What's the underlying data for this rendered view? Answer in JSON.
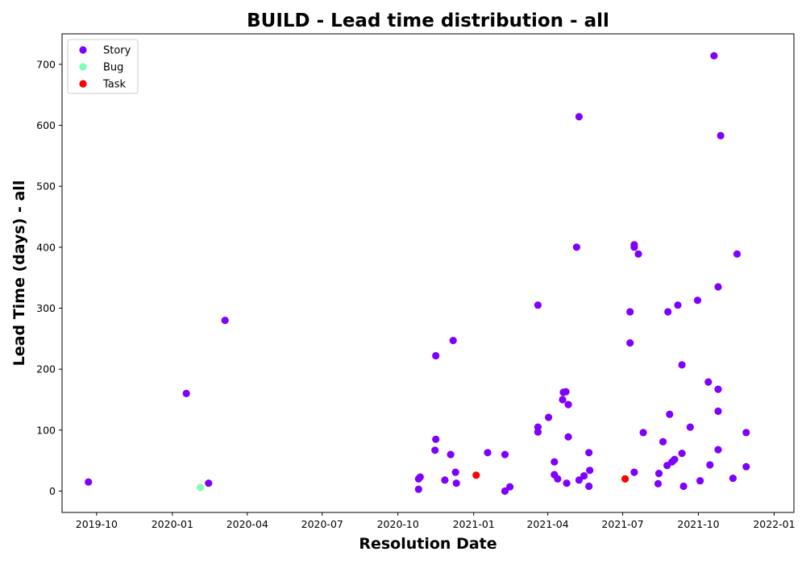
{
  "chart_data": {
    "type": "scatter",
    "title": "BUILD - Lead time distribution - all",
    "xlabel": "Resolution Date",
    "ylabel": "Lead Time (days) - all",
    "x_axis_type": "date",
    "xlim": [
      "2019-08-20",
      "2022-01-25"
    ],
    "ylim": [
      -35,
      750
    ],
    "x_ticks": [
      "2019-10-01",
      "2020-01-01",
      "2020-04-01",
      "2020-07-01",
      "2020-10-01",
      "2021-01-01",
      "2021-04-01",
      "2021-07-01",
      "2021-10-01",
      "2022-01-01"
    ],
    "x_tick_labels": [
      "2019-10",
      "2020-01",
      "2020-04",
      "2020-07",
      "2020-10",
      "2021-01",
      "2021-04",
      "2021-07",
      "2021-10",
      "2022-01"
    ],
    "y_ticks": [
      0,
      100,
      200,
      300,
      400,
      500,
      600,
      700
    ],
    "grid": false,
    "legend_position": "top-left",
    "series": [
      {
        "name": "Story",
        "color": "#8000ff",
        "points": [
          [
            "2019-09-21",
            15
          ],
          [
            "2020-01-18",
            160
          ],
          [
            "2020-02-14",
            13
          ],
          [
            "2020-03-05",
            280
          ],
          [
            "2020-10-26",
            3
          ],
          [
            "2020-10-26",
            20
          ],
          [
            "2020-10-28",
            23
          ],
          [
            "2020-11-15",
            67
          ],
          [
            "2020-11-16",
            222
          ],
          [
            "2020-11-16",
            85
          ],
          [
            "2020-11-27",
            18
          ],
          [
            "2020-12-04",
            60
          ],
          [
            "2020-12-07",
            247
          ],
          [
            "2020-12-10",
            31
          ],
          [
            "2020-12-11",
            13
          ],
          [
            "2021-01-18",
            63
          ],
          [
            "2021-02-08",
            60
          ],
          [
            "2021-02-08",
            0
          ],
          [
            "2021-02-14",
            7
          ],
          [
            "2021-03-20",
            305
          ],
          [
            "2021-03-20",
            105
          ],
          [
            "2021-03-20",
            97
          ],
          [
            "2021-04-02",
            121
          ],
          [
            "2021-04-09",
            48
          ],
          [
            "2021-04-09",
            27
          ],
          [
            "2021-04-13",
            20
          ],
          [
            "2021-04-19",
            150
          ],
          [
            "2021-04-20",
            162
          ],
          [
            "2021-04-23",
            163
          ],
          [
            "2021-04-24",
            13
          ],
          [
            "2021-04-26",
            89
          ],
          [
            "2021-04-26",
            142
          ],
          [
            "2021-05-06",
            400
          ],
          [
            "2021-05-09",
            614
          ],
          [
            "2021-05-09",
            18
          ],
          [
            "2021-05-15",
            25
          ],
          [
            "2021-05-21",
            8
          ],
          [
            "2021-05-21",
            63
          ],
          [
            "2021-05-22",
            34
          ],
          [
            "2021-07-10",
            294
          ],
          [
            "2021-07-10",
            243
          ],
          [
            "2021-07-15",
            31
          ],
          [
            "2021-07-15",
            404
          ],
          [
            "2021-07-15",
            400
          ],
          [
            "2021-07-20",
            389
          ],
          [
            "2021-07-26",
            96
          ],
          [
            "2021-08-13",
            12
          ],
          [
            "2021-08-14",
            29
          ],
          [
            "2021-08-19",
            81
          ],
          [
            "2021-08-24",
            42
          ],
          [
            "2021-08-25",
            294
          ],
          [
            "2021-08-27",
            126
          ],
          [
            "2021-08-30",
            48
          ],
          [
            "2021-09-02",
            52
          ],
          [
            "2021-09-06",
            305
          ],
          [
            "2021-09-11",
            62
          ],
          [
            "2021-09-11",
            207
          ],
          [
            "2021-09-13",
            8
          ],
          [
            "2021-09-21",
            105
          ],
          [
            "2021-09-30",
            313
          ],
          [
            "2021-10-03",
            17
          ],
          [
            "2021-10-13",
            179
          ],
          [
            "2021-10-15",
            43
          ],
          [
            "2021-10-20",
            714
          ],
          [
            "2021-10-25",
            68
          ],
          [
            "2021-10-25",
            131
          ],
          [
            "2021-10-25",
            167
          ],
          [
            "2021-10-25",
            335
          ],
          [
            "2021-10-28",
            583
          ],
          [
            "2021-11-12",
            21
          ],
          [
            "2021-11-17",
            389
          ],
          [
            "2021-11-28",
            40
          ],
          [
            "2021-11-28",
            96
          ]
        ]
      },
      {
        "name": "Bug",
        "color": "#80ffb4",
        "points": [
          [
            "2020-02-04",
            6
          ]
        ]
      },
      {
        "name": "Task",
        "color": "#ff0000",
        "points": [
          [
            "2021-01-04",
            26
          ],
          [
            "2021-07-04",
            20
          ]
        ]
      }
    ]
  }
}
